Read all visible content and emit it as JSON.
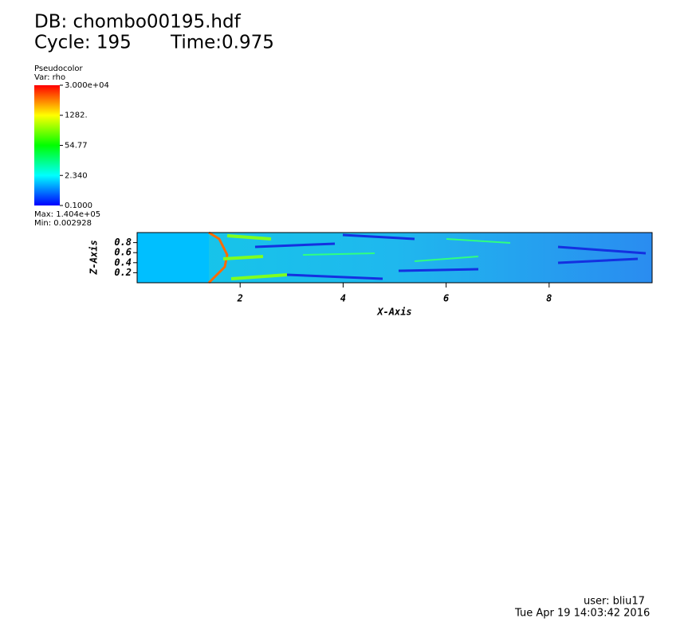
{
  "header": {
    "database": "DB: chombo00195.hdf",
    "cycle": "Cycle: 195",
    "time": "Time:0.975"
  },
  "legend": {
    "plot": "Pseudocolor",
    "variable": "Var: rho",
    "log_scale": true,
    "lim": [
      0.1,
      30000
    ],
    "ticks": [
      {
        "value": 30000,
        "label": "3.000e+04"
      },
      {
        "value": 1282,
        "label": "1282."
      },
      54.77,
      {
        "value": 2.34,
        "label": "2.340"
      },
      {
        "value": 0.1,
        "label": "0.1000"
      }
    ],
    "max": "Max:  1.404e+05",
    "min": "Min:  0.002928"
  },
  "chart_data": {
    "type": "pseudocolor",
    "xlabel": "X-Axis",
    "ylabel": "Z-Axis",
    "xlim": [
      0,
      10
    ],
    "ylim": [
      0,
      1
    ],
    "xticks": [
      2,
      4,
      6,
      8
    ],
    "yticks": [
      0.2,
      0.4,
      0.6,
      0.8
    ]
  },
  "footer": {
    "user": "user: bliu17",
    "date": "Tue Apr 19 14:03:42 2016"
  }
}
